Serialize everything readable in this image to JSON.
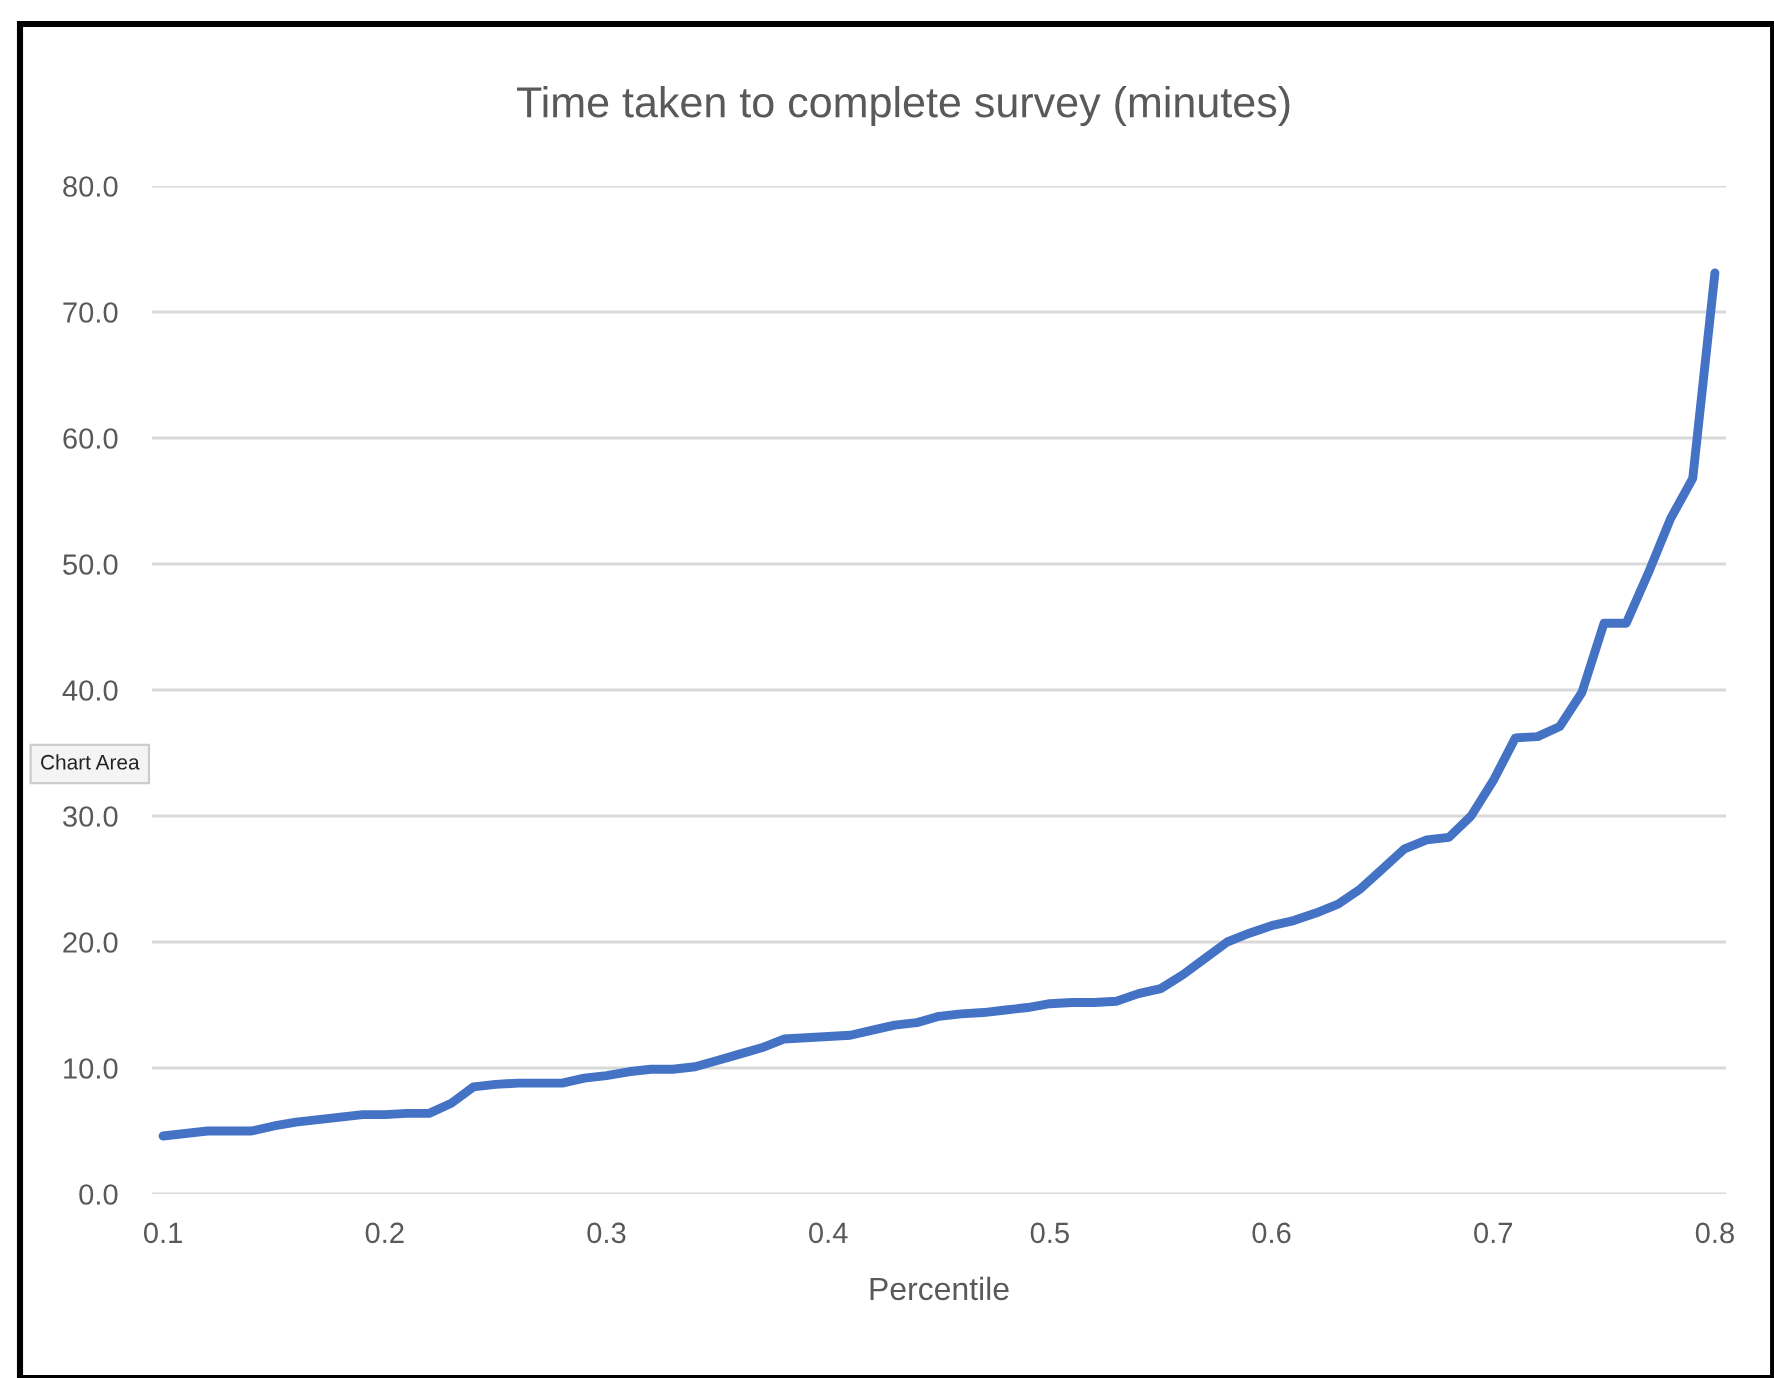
{
  "chart_data": {
    "type": "line",
    "title": "Time taken to complete survey (minutes)",
    "xlabel": "Percentile",
    "x": [
      0.1,
      0.11,
      0.12,
      0.13,
      0.14,
      0.15,
      0.16,
      0.17,
      0.18,
      0.19,
      0.2,
      0.21,
      0.22,
      0.23,
      0.24,
      0.25,
      0.26,
      0.27,
      0.28,
      0.29,
      0.3,
      0.31,
      0.32,
      0.33,
      0.34,
      0.35,
      0.36,
      0.37,
      0.38,
      0.39,
      0.4,
      0.41,
      0.42,
      0.43,
      0.44,
      0.45,
      0.46,
      0.47,
      0.48,
      0.49,
      0.5,
      0.51,
      0.52,
      0.53,
      0.54,
      0.55,
      0.56,
      0.57,
      0.58,
      0.59,
      0.6,
      0.61,
      0.62,
      0.63,
      0.64,
      0.65,
      0.66,
      0.67,
      0.68,
      0.69,
      0.7,
      0.71,
      0.72,
      0.73,
      0.74,
      0.75,
      0.76,
      0.77,
      0.78,
      0.79,
      0.8
    ],
    "series": [
      {
        "color": "#4472c4",
        "values": [
          4.6,
          4.8,
          5.0,
          5.0,
          5.0,
          5.4,
          5.7,
          5.9,
          6.1,
          6.3,
          6.3,
          6.4,
          6.4,
          7.2,
          8.5,
          8.7,
          8.8,
          8.8,
          8.8,
          9.2,
          9.4,
          9.7,
          9.9,
          9.9,
          10.1,
          10.6,
          11.1,
          11.6,
          12.3,
          12.4,
          12.5,
          12.6,
          13.0,
          13.4,
          13.6,
          14.1,
          14.3,
          14.4,
          14.6,
          14.8,
          15.1,
          15.2,
          15.2,
          15.3,
          15.9,
          16.3,
          17.4,
          18.7,
          20.0,
          20.7,
          21.3,
          21.7,
          22.3,
          23.0,
          24.2,
          25.8,
          27.4,
          28.1,
          28.3,
          30.0,
          32.8,
          36.2,
          36.3,
          37.1,
          39.8,
          45.3,
          45.3,
          49.3,
          53.6,
          56.8,
          73.1
        ]
      }
    ],
    "xlim": [
      0.095,
      0.805
    ],
    "xticks": [
      {
        "value": 0.1,
        "label": "0.1"
      },
      {
        "value": 0.2,
        "label": "0.2"
      },
      {
        "value": 0.3,
        "label": "0.3"
      },
      {
        "value": 0.4,
        "label": "0.4"
      },
      {
        "value": 0.5,
        "label": "0.5"
      },
      {
        "value": 0.6,
        "label": "0.6"
      },
      {
        "value": 0.7,
        "label": "0.7"
      },
      {
        "value": 0.8,
        "label": "0.8"
      }
    ],
    "ylim": [
      0,
      80
    ],
    "yticks": [
      {
        "value": 0,
        "label": "0.0"
      },
      {
        "value": 10,
        "label": "10.0"
      },
      {
        "value": 20,
        "label": "20.0"
      },
      {
        "value": 30,
        "label": "30.0"
      },
      {
        "value": 40,
        "label": "40.0"
      },
      {
        "value": 50,
        "label": "50.0"
      },
      {
        "value": 60,
        "label": "60.0"
      },
      {
        "value": 70,
        "label": "70.0"
      },
      {
        "value": 80,
        "label": "80.0"
      }
    ],
    "grid": "y",
    "marker": "none",
    "line_style": "solid",
    "annotations": [
      "Chart Area"
    ]
  }
}
